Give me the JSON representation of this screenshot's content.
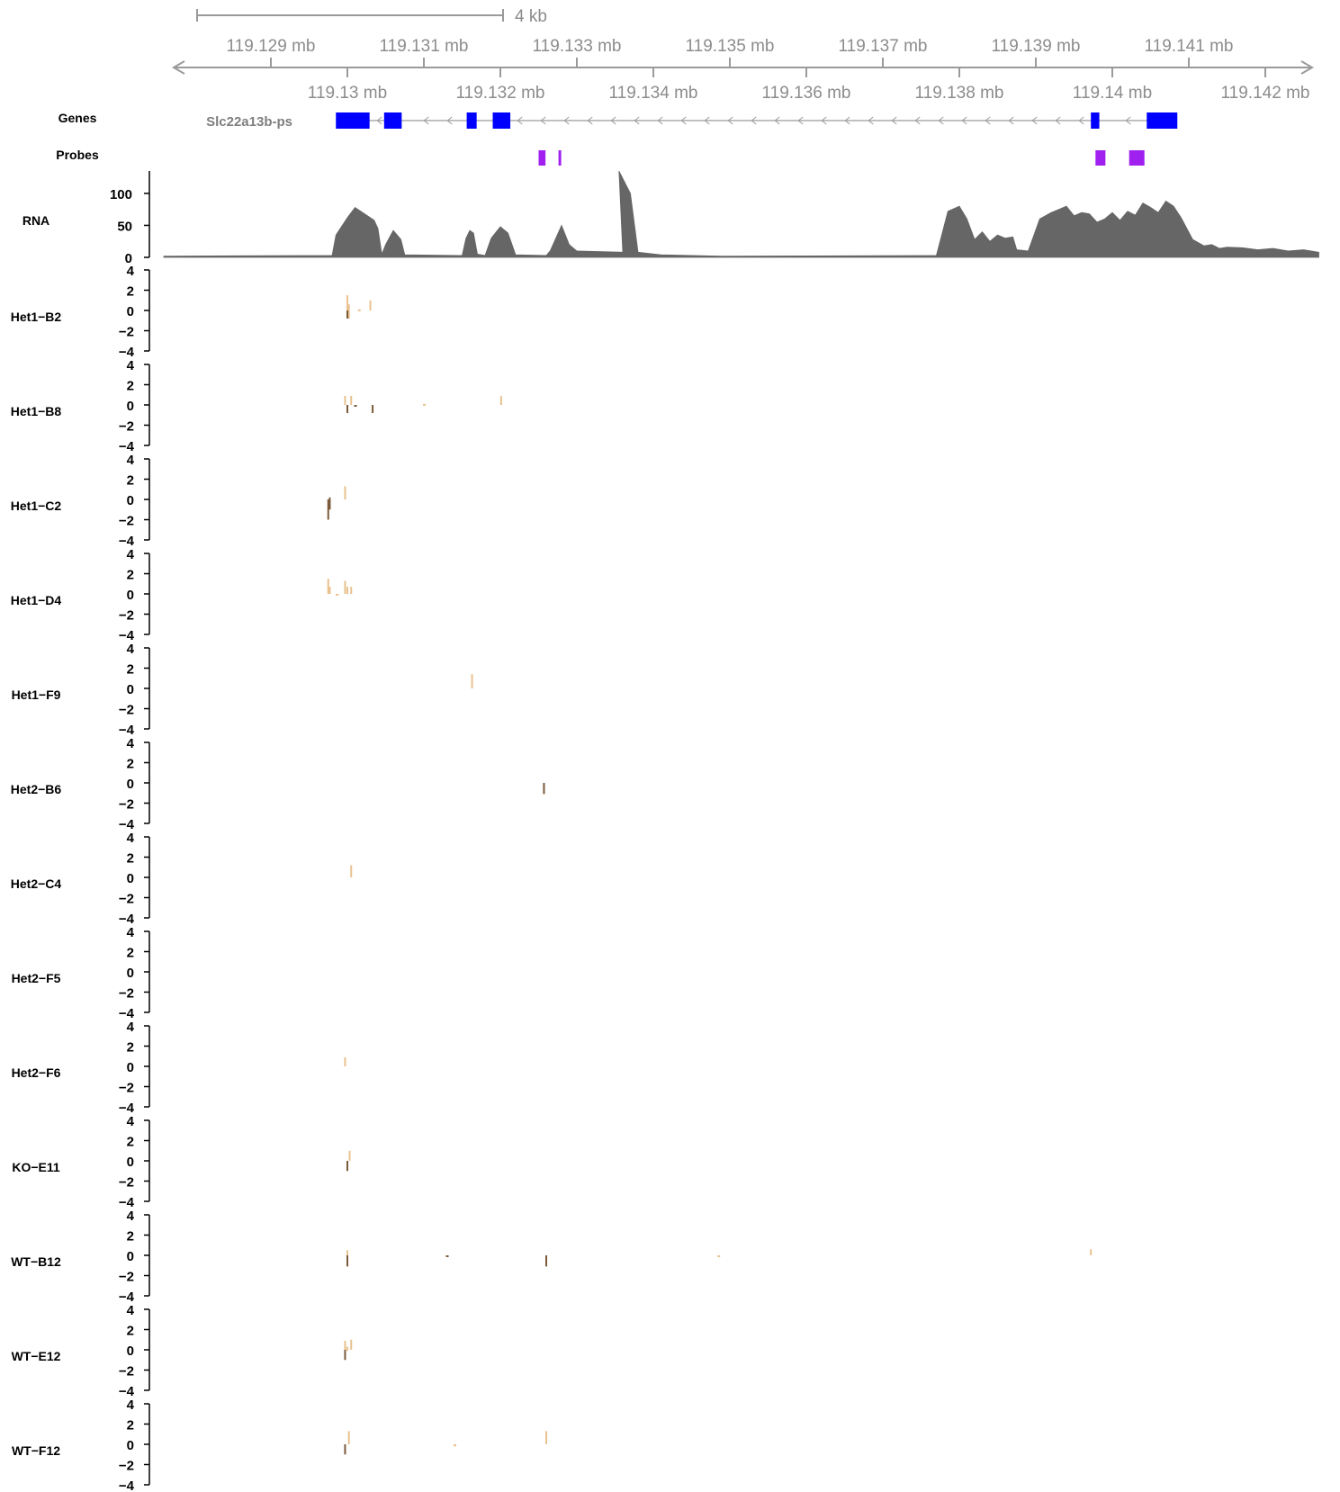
{
  "chart_data": {
    "type": "genome-track",
    "scale_bar": {
      "label": "4 kb",
      "length_mb": 0.004
    },
    "axis": {
      "range_mb": [
        119.1276,
        119.1427
      ],
      "top_ticks": [
        119.129,
        119.131,
        119.133,
        119.135,
        119.137,
        119.139,
        119.141
      ],
      "bottom_ticks": [
        119.13,
        119.132,
        119.134,
        119.136,
        119.138,
        119.14,
        119.142
      ],
      "unit": "mb"
    },
    "genes": {
      "label": "Genes",
      "gene_name": "Slc22a13b-ps",
      "strand": "-",
      "start_mb": 119.12985,
      "end_mb": 119.14085,
      "exons_mb": [
        [
          119.12985,
          119.13029
        ],
        [
          119.13048,
          119.13071
        ],
        [
          119.13156,
          119.13169
        ],
        [
          119.1319,
          119.13213
        ],
        [
          119.13972,
          119.13983
        ],
        [
          119.14045,
          119.14085
        ]
      ],
      "color": "#0000ff"
    },
    "probes": {
      "label": "Probes",
      "intervals_mb": [
        [
          119.1325,
          119.13259
        ],
        [
          119.13276,
          119.13279
        ],
        [
          119.13978,
          119.13991
        ],
        [
          119.14022,
          119.14042
        ]
      ],
      "color": "#a020f0"
    },
    "rna": {
      "label": "RNA",
      "y_ticks": [
        0,
        50,
        100
      ],
      "ylim": [
        0,
        135
      ],
      "color": "#666666",
      "profile": [
        [
          119.1276,
          2
        ],
        [
          119.1298,
          3
        ],
        [
          119.12985,
          35
        ],
        [
          119.13,
          62
        ],
        [
          119.1301,
          78
        ],
        [
          119.1302,
          70
        ],
        [
          119.13035,
          58
        ],
        [
          119.1304,
          45
        ],
        [
          119.13045,
          5
        ],
        [
          119.1305,
          20
        ],
        [
          119.1306,
          42
        ],
        [
          119.1307,
          28
        ],
        [
          119.13075,
          4
        ],
        [
          119.1315,
          3
        ],
        [
          119.13155,
          30
        ],
        [
          119.1316,
          42
        ],
        [
          119.13165,
          38
        ],
        [
          119.1317,
          5
        ],
        [
          119.1318,
          3
        ],
        [
          119.13188,
          30
        ],
        [
          119.132,
          48
        ],
        [
          119.1321,
          38
        ],
        [
          119.1322,
          4
        ],
        [
          119.1326,
          3
        ],
        [
          119.13265,
          10
        ],
        [
          119.1328,
          50
        ],
        [
          119.1329,
          20
        ],
        [
          119.133,
          10
        ],
        [
          119.1336,
          8
        ],
        [
          119.13355,
          135
        ],
        [
          119.1337,
          100
        ],
        [
          119.1338,
          8
        ],
        [
          119.1341,
          4
        ],
        [
          119.1349,
          2
        ],
        [
          119.1377,
          3
        ],
        [
          119.13785,
          72
        ],
        [
          119.138,
          80
        ],
        [
          119.1381,
          60
        ],
        [
          119.1382,
          28
        ],
        [
          119.1383,
          40
        ],
        [
          119.1384,
          25
        ],
        [
          119.1385,
          35
        ],
        [
          119.1386,
          30
        ],
        [
          119.1387,
          32
        ],
        [
          119.13875,
          12
        ],
        [
          119.1389,
          10
        ],
        [
          119.13905,
          60
        ],
        [
          119.1392,
          70
        ],
        [
          119.1393,
          75
        ],
        [
          119.1394,
          80
        ],
        [
          119.1395,
          65
        ],
        [
          119.1396,
          70
        ],
        [
          119.1397,
          68
        ],
        [
          119.1398,
          55
        ],
        [
          119.1399,
          60
        ],
        [
          119.14,
          70
        ],
        [
          119.1401,
          58
        ],
        [
          119.1402,
          72
        ],
        [
          119.1403,
          66
        ],
        [
          119.1404,
          85
        ],
        [
          119.1405,
          78
        ],
        [
          119.1406,
          70
        ],
        [
          119.1407,
          88
        ],
        [
          119.1408,
          80
        ],
        [
          119.1409,
          62
        ],
        [
          119.14105,
          28
        ],
        [
          119.1412,
          18
        ],
        [
          119.1413,
          20
        ],
        [
          119.1414,
          14
        ],
        [
          119.1415,
          16
        ],
        [
          119.1417,
          15
        ],
        [
          119.1419,
          12
        ],
        [
          119.1421,
          14
        ],
        [
          119.1423,
          10
        ],
        [
          119.1425,
          12
        ],
        [
          119.1427,
          8
        ]
      ]
    },
    "samples_y_ticks": [
      4,
      2,
      0,
      -2,
      -4
    ],
    "samples_ylim": [
      -4,
      4
    ],
    "colors": {
      "light": "#e9c28f",
      "dark": "#7b5a3a"
    },
    "samples": [
      {
        "name": "Het1−B2",
        "marks": [
          [
            119.13,
            0,
            1.5,
            "light"
          ],
          [
            119.13002,
            0.6,
            -0.8,
            "light"
          ],
          [
            119.13,
            0,
            -0.8,
            "dark"
          ],
          [
            119.13015,
            0,
            0.1,
            "light"
          ],
          [
            119.1303,
            0,
            1.0,
            "light"
          ]
        ]
      },
      {
        "name": "Het1−B8",
        "marks": [
          [
            119.12997,
            0,
            0.9,
            "light"
          ],
          [
            119.13,
            0,
            -0.8,
            "dark"
          ],
          [
            119.13005,
            0,
            0.9,
            "light"
          ],
          [
            119.1301,
            0,
            -0.1,
            "dark"
          ],
          [
            119.13033,
            0,
            -0.8,
            "dark"
          ],
          [
            119.131,
            0,
            0.1,
            "light"
          ],
          [
            119.13201,
            0,
            0.9,
            "light"
          ]
        ]
      },
      {
        "name": "Het1−C2",
        "marks": [
          [
            119.12975,
            0,
            -2.0,
            "dark"
          ],
          [
            119.12977,
            0.2,
            -1.0,
            "dark"
          ],
          [
            119.12997,
            0,
            1.3,
            "light"
          ]
        ]
      },
      {
        "name": "Het1−D4",
        "marks": [
          [
            119.12975,
            0,
            1.5,
            "light"
          ],
          [
            119.12977,
            0,
            0.7,
            "light"
          ],
          [
            119.12986,
            0,
            -0.1,
            "light"
          ],
          [
            119.12997,
            0,
            1.3,
            "light"
          ],
          [
            119.13,
            0,
            0.7,
            "light"
          ],
          [
            119.13005,
            0,
            0.7,
            "light"
          ]
        ]
      },
      {
        "name": "Het1−F9",
        "marks": [
          [
            119.13163,
            0,
            1.4,
            "light"
          ]
        ]
      },
      {
        "name": "Het2−B6",
        "marks": [
          [
            119.13257,
            0,
            -1.1,
            "dark"
          ]
        ]
      },
      {
        "name": "Het2−C4",
        "marks": [
          [
            119.13005,
            0,
            1.2,
            "light"
          ]
        ]
      },
      {
        "name": "Het2−F5",
        "marks": []
      },
      {
        "name": "Het2−F6",
        "marks": [
          [
            119.12997,
            0,
            0.9,
            "light"
          ]
        ]
      },
      {
        "name": "KO−E11",
        "marks": [
          [
            119.13,
            0,
            -1.0,
            "dark"
          ],
          [
            119.13003,
            0,
            1.0,
            "light"
          ]
        ]
      },
      {
        "name": "WT−B12",
        "marks": [
          [
            119.13,
            0,
            -1.1,
            "dark"
          ],
          [
            119.13,
            0,
            0.5,
            "light"
          ],
          [
            119.1313,
            0,
            -0.1,
            "dark"
          ],
          [
            119.1326,
            0,
            -1.1,
            "dark"
          ],
          [
            119.13485,
            0,
            -0.1,
            "light"
          ],
          [
            119.13972,
            0,
            0.6,
            "light"
          ]
        ]
      },
      {
        "name": "WT−E12",
        "marks": [
          [
            119.12997,
            0,
            -1.0,
            "dark"
          ],
          [
            119.12997,
            0,
            0.9,
            "light"
          ],
          [
            119.13,
            0.3,
            -0.1,
            "light"
          ],
          [
            119.13005,
            0,
            1.0,
            "light"
          ]
        ]
      },
      {
        "name": "WT−F12",
        "marks": [
          [
            119.12997,
            0,
            -1.0,
            "dark"
          ],
          [
            119.13002,
            0,
            1.3,
            "light"
          ],
          [
            119.1314,
            0,
            -0.2,
            "light"
          ],
          [
            119.1326,
            0,
            1.3,
            "light"
          ]
        ]
      }
    ]
  }
}
